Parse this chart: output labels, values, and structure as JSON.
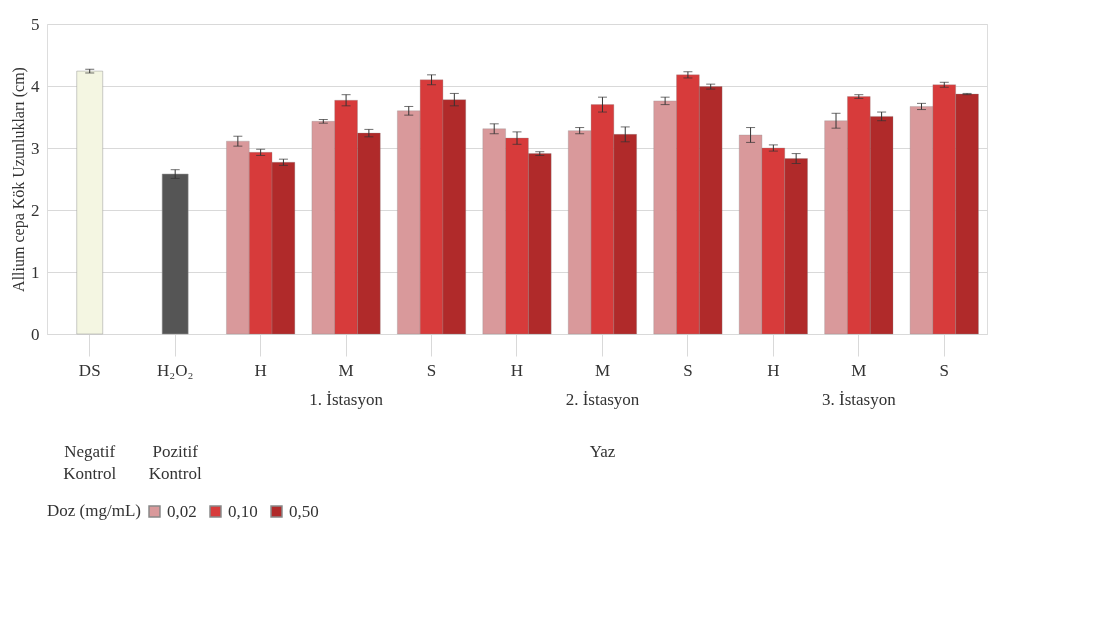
{
  "chart_data": {
    "type": "bar",
    "ylabel": "Allium cepa Kök Uzunlukları (cm)",
    "legend_title": "Doz (mg/mL)",
    "categories": [
      "DS",
      "H₂O₂",
      "H",
      "M",
      "S",
      "H",
      "M",
      "S",
      "H",
      "M",
      "S"
    ],
    "series": [
      {
        "color": "#f4f6e2",
        "values": [
          4.24,
          null,
          null,
          null,
          null,
          null,
          null,
          null,
          null,
          null,
          null
        ],
        "errors": [
          0.03,
          null,
          null,
          null,
          null,
          null,
          null,
          null,
          null,
          null,
          null
        ]
      },
      {
        "color": "#555555",
        "values": [
          null,
          2.58,
          null,
          null,
          null,
          null,
          null,
          null,
          null,
          null,
          null
        ],
        "errors": [
          null,
          0.07,
          null,
          null,
          null,
          null,
          null,
          null,
          null,
          null,
          null
        ]
      },
      {
        "name": "0,02",
        "color": "#d9999b",
        "values": [
          null,
          null,
          3.11,
          3.43,
          3.6,
          3.31,
          3.28,
          3.76,
          3.21,
          3.44,
          3.67
        ],
        "errors": [
          null,
          null,
          0.08,
          0.03,
          0.07,
          0.08,
          0.05,
          0.06,
          0.12,
          0.12,
          0.05
        ]
      },
      {
        "name": "0,10",
        "color": "#d73b3b",
        "values": [
          null,
          null,
          2.93,
          3.77,
          4.1,
          3.16,
          3.7,
          4.18,
          3.0,
          3.83,
          4.02
        ],
        "errors": [
          null,
          null,
          0.05,
          0.09,
          0.08,
          0.1,
          0.12,
          0.05,
          0.05,
          0.03,
          0.04
        ]
      },
      {
        "name": "0,50",
        "color": "#b02a2a",
        "values": [
          null,
          null,
          2.77,
          3.24,
          3.78,
          2.91,
          3.22,
          3.99,
          2.83,
          3.51,
          3.87
        ],
        "errors": [
          null,
          null,
          0.05,
          0.06,
          0.1,
          0.03,
          0.12,
          0.04,
          0.08,
          0.07,
          0.01
        ]
      }
    ],
    "ylim": [
      0,
      5
    ],
    "yticks": [
      0,
      1,
      2,
      3,
      4,
      5
    ],
    "grid": "y",
    "legend": "bottom",
    "annotations": [
      "1. İstasyon",
      "2. İstasyon",
      "3. İstasyon",
      "Negatif Kontrol",
      "Pozitif Kontrol",
      "Yaz"
    ]
  }
}
